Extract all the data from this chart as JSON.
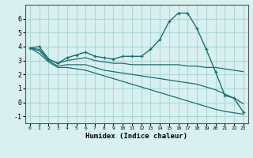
{
  "xlabel": "Humidex (Indice chaleur)",
  "bg_color": "#d8f0f0",
  "grid_color": "#b0d8d8",
  "line_color": "#1a7070",
  "x_ticks": [
    0,
    1,
    2,
    3,
    4,
    5,
    6,
    7,
    8,
    9,
    10,
    11,
    12,
    13,
    14,
    15,
    16,
    17,
    18,
    19,
    20,
    21,
    22,
    23
  ],
  "ylim": [
    -1.5,
    7.0
  ],
  "xlim": [
    -0.5,
    23.5
  ],
  "yticks": [
    -1,
    0,
    1,
    2,
    3,
    4,
    5,
    6
  ],
  "series": [
    {
      "x": [
        0,
        1,
        2,
        3,
        4,
        5,
        6,
        7,
        8,
        9,
        10,
        11,
        12,
        13,
        14,
        15,
        16,
        17,
        18,
        19,
        20,
        21,
        22,
        23
      ],
      "y": [
        3.9,
        4.0,
        3.1,
        2.8,
        3.2,
        3.4,
        3.6,
        3.3,
        3.2,
        3.1,
        3.3,
        3.3,
        3.3,
        3.8,
        4.5,
        5.8,
        6.4,
        6.4,
        5.3,
        3.8,
        2.2,
        0.5,
        0.3,
        -0.7
      ],
      "marker": true
    },
    {
      "x": [
        0,
        1,
        2,
        3,
        4,
        5,
        6,
        7,
        8,
        9,
        10,
        11,
        12,
        13,
        14,
        15,
        16,
        17,
        18,
        19,
        20,
        21,
        22,
        23
      ],
      "y": [
        3.9,
        3.8,
        3.1,
        2.8,
        3.0,
        3.1,
        3.2,
        3.0,
        2.9,
        2.8,
        2.8,
        2.7,
        2.7,
        2.7,
        2.7,
        2.7,
        2.7,
        2.6,
        2.6,
        2.5,
        2.5,
        2.4,
        2.3,
        2.2
      ],
      "marker": false
    },
    {
      "x": [
        0,
        1,
        2,
        3,
        4,
        5,
        6,
        7,
        8,
        9,
        10,
        11,
        12,
        13,
        14,
        15,
        16,
        17,
        18,
        19,
        20,
        21,
        22,
        23
      ],
      "y": [
        3.9,
        3.7,
        3.0,
        2.6,
        2.7,
        2.7,
        2.7,
        2.5,
        2.3,
        2.2,
        2.1,
        2.0,
        1.9,
        1.8,
        1.7,
        1.6,
        1.5,
        1.4,
        1.3,
        1.1,
        0.9,
        0.6,
        0.3,
        -0.1
      ],
      "marker": false
    },
    {
      "x": [
        0,
        1,
        2,
        3,
        4,
        5,
        6,
        7,
        8,
        9,
        10,
        11,
        12,
        13,
        14,
        15,
        16,
        17,
        18,
        19,
        20,
        21,
        22,
        23
      ],
      "y": [
        3.9,
        3.5,
        2.9,
        2.5,
        2.5,
        2.4,
        2.3,
        2.1,
        1.9,
        1.7,
        1.5,
        1.3,
        1.1,
        0.9,
        0.7,
        0.5,
        0.3,
        0.1,
        -0.1,
        -0.3,
        -0.5,
        -0.65,
        -0.75,
        -0.85
      ],
      "marker": false
    }
  ]
}
